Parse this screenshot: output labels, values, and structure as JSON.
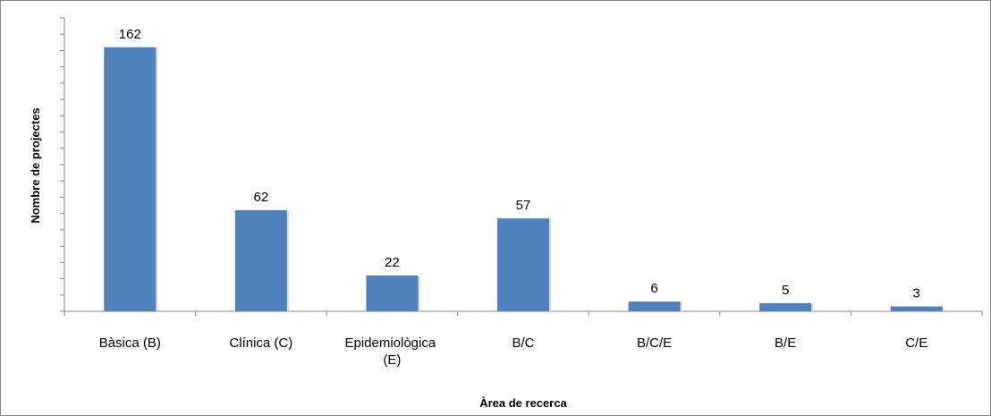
{
  "chart_data": {
    "type": "bar",
    "categories": [
      "Bàsica (B)",
      "Clínica (C)",
      "Epidemiològica (E)",
      "B/C",
      "B/C/E",
      "B/E",
      "C/E"
    ],
    "values": [
      162,
      62,
      22,
      57,
      6,
      5,
      3
    ],
    "color": "#4f81bd",
    "xlabel": "Àrea de recerca",
    "ylabel": "Nombre de projectes",
    "ylim": [
      0,
      180
    ],
    "yticks": [
      0,
      10,
      20,
      30,
      40,
      50,
      60,
      70,
      80,
      90,
      100,
      110,
      120,
      130,
      140,
      150,
      160,
      170,
      180
    ]
  }
}
